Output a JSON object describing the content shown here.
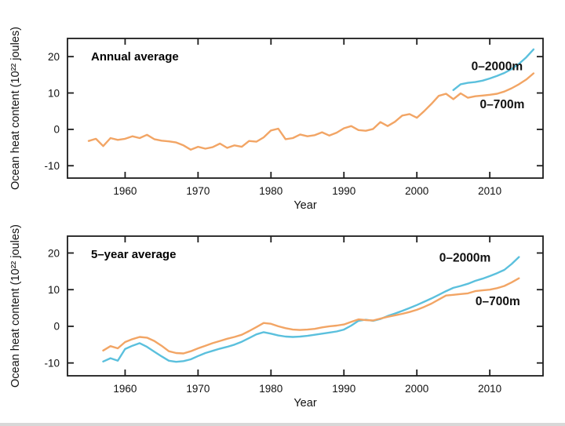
{
  "page": {
    "bottom_edge_color": "#d8d8d8",
    "background_color": "#ffffff",
    "axis_color": "#1c1c1c"
  },
  "chart_data": [
    {
      "type": "line",
      "title": "Annual average",
      "xlabel": "Year",
      "ylabel": "Ocean heat content (10²² joules)",
      "xlim": [
        1952.1,
        2017.3
      ],
      "ylim": [
        -13.4,
        25.0
      ],
      "xticks": [
        1960,
        1970,
        1980,
        1990,
        2000,
        2010
      ],
      "yticks": [
        -10,
        0,
        10,
        20
      ],
      "grid": false,
      "legend_position": "inline-labels",
      "series": [
        {
          "name": "0–2000m",
          "color": "#5bc0dd",
          "label_color": "#27a7d9",
          "start_year": 2005,
          "step": 1,
          "label_pos": [
            2011.0,
            16.3
          ],
          "values": [
            10.8,
            12.4,
            12.8,
            13.0,
            13.4,
            14.0,
            14.7,
            15.5,
            16.6,
            18.0,
            19.8,
            22.0
          ]
        },
        {
          "name": "0–700m",
          "color": "#f2a565",
          "label_color": "#ed7d28",
          "start_year": 1955,
          "step": 1,
          "label_pos": [
            2011.7,
            5.8
          ],
          "values": [
            -3.2,
            -2.6,
            -4.6,
            -2.4,
            -2.9,
            -2.6,
            -1.9,
            -2.4,
            -1.5,
            -2.7,
            -3.1,
            -3.3,
            -3.6,
            -4.4,
            -5.6,
            -4.8,
            -5.3,
            -4.9,
            -3.9,
            -5.1,
            -4.4,
            -4.8,
            -3.2,
            -3.4,
            -2.2,
            -0.3,
            0.2,
            -2.7,
            -2.4,
            -1.4,
            -1.9,
            -1.6,
            -0.8,
            -1.7,
            -0.9,
            0.3,
            0.9,
            -0.2,
            -0.4,
            0.1,
            2.0,
            0.9,
            2.1,
            3.8,
            4.2,
            3.2,
            5.0,
            7.0,
            9.2,
            9.8,
            8.3,
            9.9,
            8.7,
            9.1,
            9.3,
            9.5,
            9.8,
            10.4,
            11.3,
            12.4,
            13.7,
            15.4
          ]
        }
      ]
    },
    {
      "type": "line",
      "title": "5–year average",
      "xlabel": "Year",
      "ylabel": "Ocean heat content (10²² joules)",
      "xlim": [
        1952.1,
        2017.3
      ],
      "ylim": [
        -13.5,
        24.6
      ],
      "xticks": [
        1960,
        1970,
        1980,
        1990,
        2000,
        2010
      ],
      "yticks": [
        -10,
        0,
        10,
        20
      ],
      "grid": false,
      "legend_position": "inline-labels",
      "series": [
        {
          "name": "0–2000m",
          "color": "#5bc0dd",
          "label_color": "#27a7d9",
          "start_year": 1957,
          "step": 1,
          "label_pos": [
            2006.6,
            17.6
          ],
          "values": [
            -9.6,
            -8.7,
            -9.4,
            -6.2,
            -5.3,
            -4.6,
            -5.6,
            -6.9,
            -8.2,
            -9.4,
            -9.7,
            -9.5,
            -9.0,
            -8.1,
            -7.3,
            -6.7,
            -6.1,
            -5.6,
            -5.0,
            -4.2,
            -3.2,
            -2.2,
            -1.6,
            -2.0,
            -2.5,
            -2.8,
            -2.9,
            -2.8,
            -2.6,
            -2.3,
            -2.0,
            -1.7,
            -1.4,
            -0.9,
            0.2,
            1.5,
            1.8,
            1.5,
            2.0,
            2.8,
            3.5,
            4.2,
            5.0,
            5.8,
            6.7,
            7.6,
            8.6,
            9.6,
            10.5,
            11.0,
            11.6,
            12.4,
            13.0,
            13.7,
            14.5,
            15.4,
            17.0,
            18.9
          ]
        },
        {
          "name": "0–700m",
          "color": "#f2a565",
          "label_color": "#ed7d28",
          "start_year": 1957,
          "step": 1,
          "label_pos": [
            2011.1,
            5.8
          ],
          "values": [
            -6.6,
            -5.4,
            -6.0,
            -4.3,
            -3.5,
            -2.9,
            -3.1,
            -4.0,
            -5.3,
            -6.8,
            -7.3,
            -7.4,
            -6.8,
            -6.0,
            -5.3,
            -4.6,
            -4.0,
            -3.4,
            -2.9,
            -2.3,
            -1.3,
            -0.2,
            0.9,
            0.7,
            0.0,
            -0.5,
            -0.9,
            -1.0,
            -0.9,
            -0.7,
            -0.3,
            0.0,
            0.2,
            0.5,
            1.2,
            1.9,
            1.7,
            1.6,
            2.1,
            2.6,
            3.0,
            3.4,
            3.9,
            4.5,
            5.3,
            6.2,
            7.3,
            8.4,
            8.6,
            8.8,
            9.0,
            9.6,
            9.8,
            10.0,
            10.4,
            11.0,
            12.0,
            13.1
          ]
        }
      ]
    }
  ]
}
